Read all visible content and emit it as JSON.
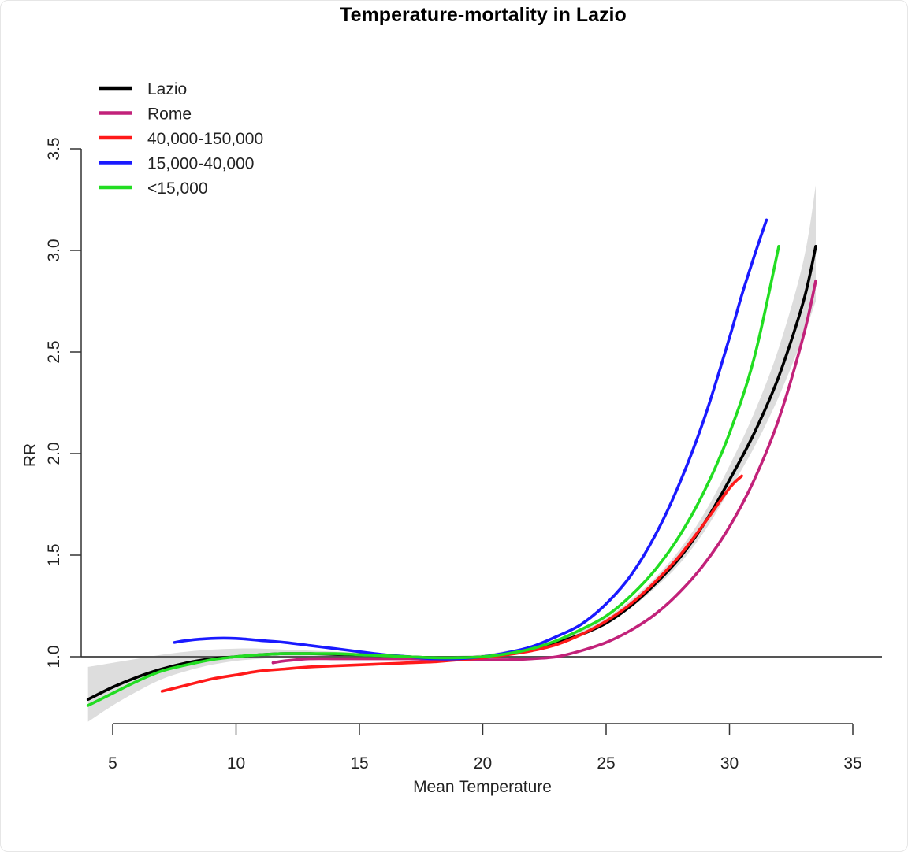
{
  "chart_data": {
    "type": "line",
    "title": "Temperature-mortality in Lazio",
    "xlabel": "Mean Temperature",
    "ylabel": "RR",
    "xlim": [
      4,
      35
    ],
    "ylim": [
      0.75,
      3.5
    ],
    "xticks": [
      "5",
      "10",
      "15",
      "20",
      "25",
      "30",
      "35"
    ],
    "yticks": [
      "1.0",
      "1.5",
      "2.0",
      "2.5",
      "3.0",
      "3.5"
    ],
    "reference_line": 1.0,
    "legend_position": "top-left",
    "confidence_band": {
      "series": "Lazio",
      "color": "#dddddd",
      "x": [
        4,
        5,
        6,
        7,
        8,
        9,
        10,
        11,
        12,
        13,
        14,
        15,
        16,
        17,
        18,
        19,
        20,
        21,
        22,
        23,
        24,
        25,
        26,
        27,
        28,
        29,
        30,
        31,
        32,
        33,
        33.5
      ],
      "lower": [
        0.68,
        0.76,
        0.83,
        0.89,
        0.93,
        0.96,
        0.98,
        0.99,
        1.0,
        1.005,
        1.0,
        0.995,
        0.99,
        0.99,
        0.99,
        0.995,
        1.0,
        1.01,
        1.03,
        1.06,
        1.1,
        1.16,
        1.24,
        1.34,
        1.46,
        1.62,
        1.82,
        2.03,
        2.28,
        2.58,
        2.75
      ],
      "upper": [
        0.95,
        0.97,
        0.99,
        1.01,
        1.025,
        1.035,
        1.04,
        1.04,
        1.035,
        1.03,
        1.025,
        1.02,
        1.01,
        1.005,
        1.0,
        1.005,
        1.01,
        1.03,
        1.05,
        1.08,
        1.13,
        1.19,
        1.28,
        1.39,
        1.53,
        1.71,
        1.94,
        2.2,
        2.52,
        2.95,
        3.32
      ]
    },
    "series": [
      {
        "name": "Lazio",
        "color": "#000000",
        "x": [
          4,
          5,
          6,
          7,
          8,
          9,
          10,
          11,
          12,
          13,
          14,
          15,
          16,
          17,
          18,
          19,
          20,
          21,
          22,
          23,
          24,
          25,
          26,
          27,
          28,
          29,
          30,
          31,
          32,
          33,
          33.5
        ],
        "y": [
          0.79,
          0.85,
          0.9,
          0.94,
          0.97,
          0.99,
          1.0,
          1.01,
          1.015,
          1.015,
          1.012,
          1.01,
          1.005,
          1.0,
          0.995,
          0.995,
          1.0,
          1.015,
          1.035,
          1.07,
          1.11,
          1.165,
          1.25,
          1.36,
          1.49,
          1.66,
          1.87,
          2.1,
          2.38,
          2.75,
          3.02
        ]
      },
      {
        "name": "Rome",
        "color": "#c2227a",
        "x": [
          11.5,
          12,
          13,
          14,
          15,
          16,
          17,
          18,
          19,
          20,
          21,
          22,
          23,
          24,
          25,
          26,
          27,
          28,
          29,
          30,
          31,
          32,
          33,
          33.5
        ],
        "y": [
          0.97,
          0.98,
          0.99,
          0.99,
          0.99,
          0.99,
          0.99,
          0.985,
          0.985,
          0.985,
          0.985,
          0.99,
          1.0,
          1.03,
          1.07,
          1.13,
          1.21,
          1.32,
          1.46,
          1.64,
          1.87,
          2.17,
          2.58,
          2.85
        ]
      },
      {
        "name": "40,000-150,000",
        "color": "#ff1a1a",
        "x": [
          7,
          8,
          9,
          10,
          11,
          12,
          13,
          14,
          15,
          16,
          17,
          18,
          19,
          20,
          21,
          22,
          23,
          24,
          25,
          26,
          27,
          28,
          29,
          30,
          30.5
        ],
        "y": [
          0.83,
          0.86,
          0.89,
          0.91,
          0.93,
          0.94,
          0.95,
          0.955,
          0.96,
          0.965,
          0.97,
          0.975,
          0.985,
          0.995,
          1.01,
          1.03,
          1.06,
          1.11,
          1.175,
          1.26,
          1.37,
          1.5,
          1.66,
          1.83,
          1.89
        ]
      },
      {
        "name": "15,000-40,000",
        "color": "#1a1aff",
        "x": [
          7.5,
          8,
          9,
          10,
          11,
          12,
          13,
          14,
          15,
          16,
          17,
          18,
          19,
          20,
          21,
          22,
          23,
          24,
          25,
          26,
          27,
          28,
          29,
          30,
          30.5,
          31,
          31.5
        ],
        "y": [
          1.07,
          1.08,
          1.09,
          1.09,
          1.08,
          1.07,
          1.055,
          1.04,
          1.025,
          1.01,
          1.0,
          0.99,
          0.99,
          1.0,
          1.02,
          1.05,
          1.1,
          1.16,
          1.26,
          1.4,
          1.6,
          1.86,
          2.18,
          2.57,
          2.78,
          2.97,
          3.15
        ]
      },
      {
        "name": "<15,000",
        "color": "#22dd22",
        "x": [
          4,
          5,
          6,
          7,
          8,
          9,
          10,
          11,
          12,
          13,
          14,
          15,
          16,
          17,
          18,
          19,
          20,
          21,
          22,
          23,
          24,
          25,
          26,
          27,
          28,
          29,
          30,
          31,
          32
        ],
        "y": [
          0.76,
          0.82,
          0.88,
          0.93,
          0.96,
          0.985,
          1.0,
          1.01,
          1.015,
          1.015,
          1.015,
          1.01,
          1.005,
          1.0,
          0.995,
          0.995,
          1.0,
          1.015,
          1.04,
          1.08,
          1.135,
          1.2,
          1.3,
          1.43,
          1.6,
          1.82,
          2.1,
          2.47,
          3.02
        ]
      }
    ]
  }
}
